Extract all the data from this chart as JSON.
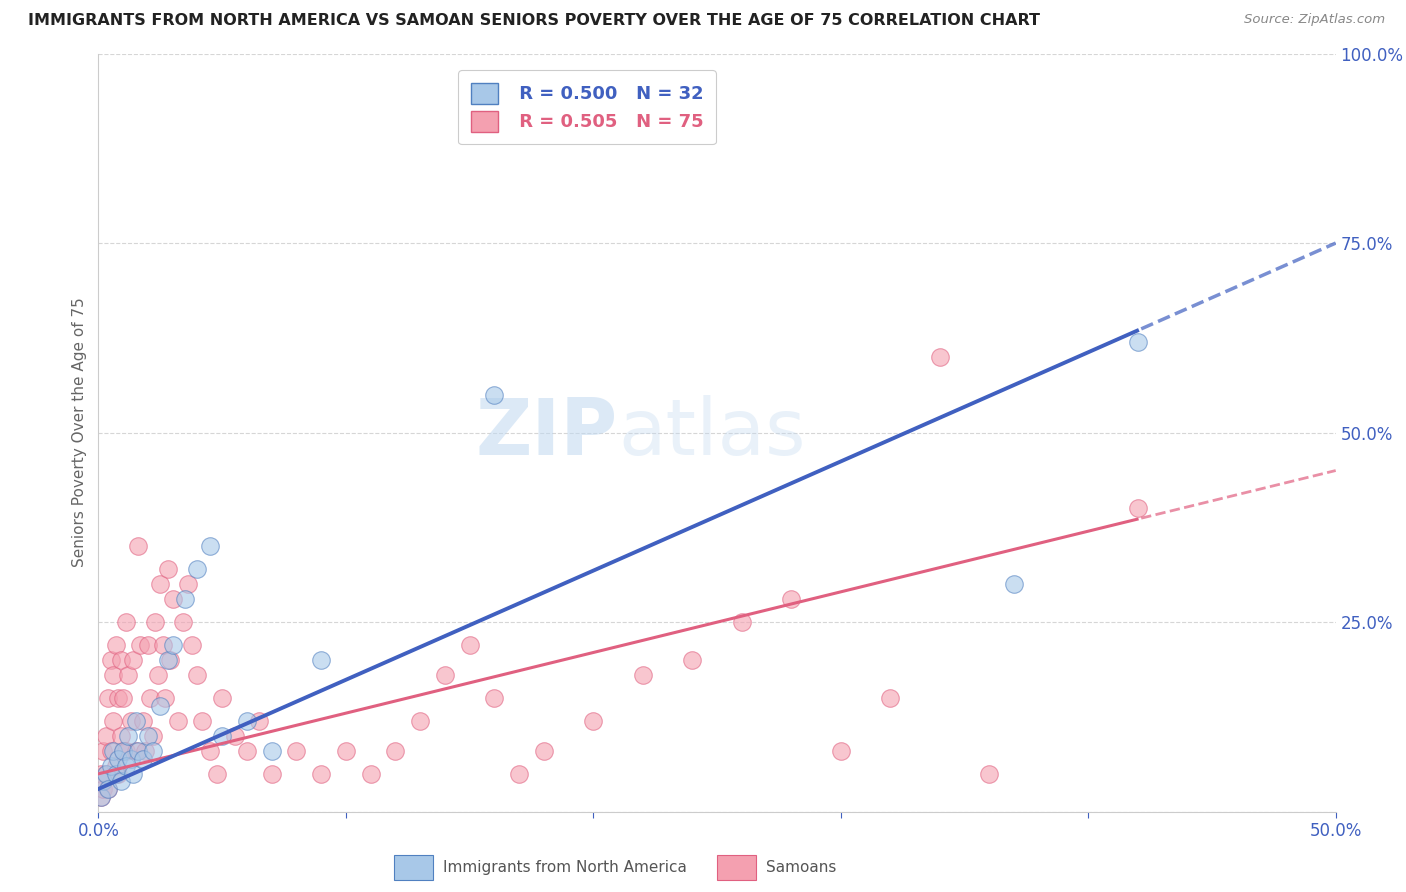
{
  "title": "IMMIGRANTS FROM NORTH AMERICA VS SAMOAN SENIORS POVERTY OVER THE AGE OF 75 CORRELATION CHART",
  "source": "Source: ZipAtlas.com",
  "ylabel": "Seniors Poverty Over the Age of 75",
  "xlim": [
    0.0,
    0.5
  ],
  "ylim": [
    0.0,
    1.0
  ],
  "blue_R": 0.5,
  "blue_N": 32,
  "pink_R": 0.505,
  "pink_N": 75,
  "blue_label": "Immigrants from North America",
  "pink_label": "Samoans",
  "blue_color": "#a8c8e8",
  "pink_color": "#f4a0b0",
  "blue_edge_color": "#5080c0",
  "pink_edge_color": "#e06080",
  "blue_line_color": "#4060c0",
  "pink_line_color": "#e06080",
  "watermark_color": "#d0e8f8",
  "blue_scatter": [
    [
      0.001,
      0.02
    ],
    [
      0.002,
      0.04
    ],
    [
      0.003,
      0.05
    ],
    [
      0.004,
      0.03
    ],
    [
      0.005,
      0.06
    ],
    [
      0.006,
      0.08
    ],
    [
      0.007,
      0.05
    ],
    [
      0.008,
      0.07
    ],
    [
      0.009,
      0.04
    ],
    [
      0.01,
      0.08
    ],
    [
      0.011,
      0.06
    ],
    [
      0.012,
      0.1
    ],
    [
      0.013,
      0.07
    ],
    [
      0.014,
      0.05
    ],
    [
      0.015,
      0.12
    ],
    [
      0.016,
      0.08
    ],
    [
      0.018,
      0.07
    ],
    [
      0.02,
      0.1
    ],
    [
      0.022,
      0.08
    ],
    [
      0.025,
      0.14
    ],
    [
      0.028,
      0.2
    ],
    [
      0.03,
      0.22
    ],
    [
      0.035,
      0.28
    ],
    [
      0.04,
      0.32
    ],
    [
      0.045,
      0.35
    ],
    [
      0.05,
      0.1
    ],
    [
      0.06,
      0.12
    ],
    [
      0.07,
      0.08
    ],
    [
      0.09,
      0.2
    ],
    [
      0.16,
      0.55
    ],
    [
      0.37,
      0.3
    ],
    [
      0.42,
      0.62
    ]
  ],
  "pink_scatter": [
    [
      0.001,
      0.02
    ],
    [
      0.001,
      0.05
    ],
    [
      0.002,
      0.03
    ],
    [
      0.002,
      0.08
    ],
    [
      0.003,
      0.1
    ],
    [
      0.003,
      0.05
    ],
    [
      0.004,
      0.15
    ],
    [
      0.004,
      0.03
    ],
    [
      0.005,
      0.2
    ],
    [
      0.005,
      0.08
    ],
    [
      0.006,
      0.18
    ],
    [
      0.006,
      0.12
    ],
    [
      0.007,
      0.22
    ],
    [
      0.007,
      0.06
    ],
    [
      0.008,
      0.15
    ],
    [
      0.008,
      0.05
    ],
    [
      0.009,
      0.1
    ],
    [
      0.009,
      0.2
    ],
    [
      0.01,
      0.08
    ],
    [
      0.01,
      0.15
    ],
    [
      0.011,
      0.25
    ],
    [
      0.011,
      0.08
    ],
    [
      0.012,
      0.18
    ],
    [
      0.013,
      0.12
    ],
    [
      0.014,
      0.2
    ],
    [
      0.015,
      0.08
    ],
    [
      0.016,
      0.35
    ],
    [
      0.017,
      0.22
    ],
    [
      0.018,
      0.12
    ],
    [
      0.019,
      0.08
    ],
    [
      0.02,
      0.22
    ],
    [
      0.021,
      0.15
    ],
    [
      0.022,
      0.1
    ],
    [
      0.023,
      0.25
    ],
    [
      0.024,
      0.18
    ],
    [
      0.025,
      0.3
    ],
    [
      0.026,
      0.22
    ],
    [
      0.027,
      0.15
    ],
    [
      0.028,
      0.32
    ],
    [
      0.029,
      0.2
    ],
    [
      0.03,
      0.28
    ],
    [
      0.032,
      0.12
    ],
    [
      0.034,
      0.25
    ],
    [
      0.036,
      0.3
    ],
    [
      0.038,
      0.22
    ],
    [
      0.04,
      0.18
    ],
    [
      0.042,
      0.12
    ],
    [
      0.045,
      0.08
    ],
    [
      0.048,
      0.05
    ],
    [
      0.05,
      0.15
    ],
    [
      0.055,
      0.1
    ],
    [
      0.06,
      0.08
    ],
    [
      0.065,
      0.12
    ],
    [
      0.07,
      0.05
    ],
    [
      0.08,
      0.08
    ],
    [
      0.09,
      0.05
    ],
    [
      0.1,
      0.08
    ],
    [
      0.11,
      0.05
    ],
    [
      0.12,
      0.08
    ],
    [
      0.13,
      0.12
    ],
    [
      0.14,
      0.18
    ],
    [
      0.15,
      0.22
    ],
    [
      0.16,
      0.15
    ],
    [
      0.17,
      0.05
    ],
    [
      0.18,
      0.08
    ],
    [
      0.2,
      0.12
    ],
    [
      0.22,
      0.18
    ],
    [
      0.24,
      0.2
    ],
    [
      0.26,
      0.25
    ],
    [
      0.28,
      0.28
    ],
    [
      0.3,
      0.08
    ],
    [
      0.32,
      0.15
    ],
    [
      0.34,
      0.6
    ],
    [
      0.36,
      0.05
    ],
    [
      0.42,
      0.4
    ]
  ]
}
